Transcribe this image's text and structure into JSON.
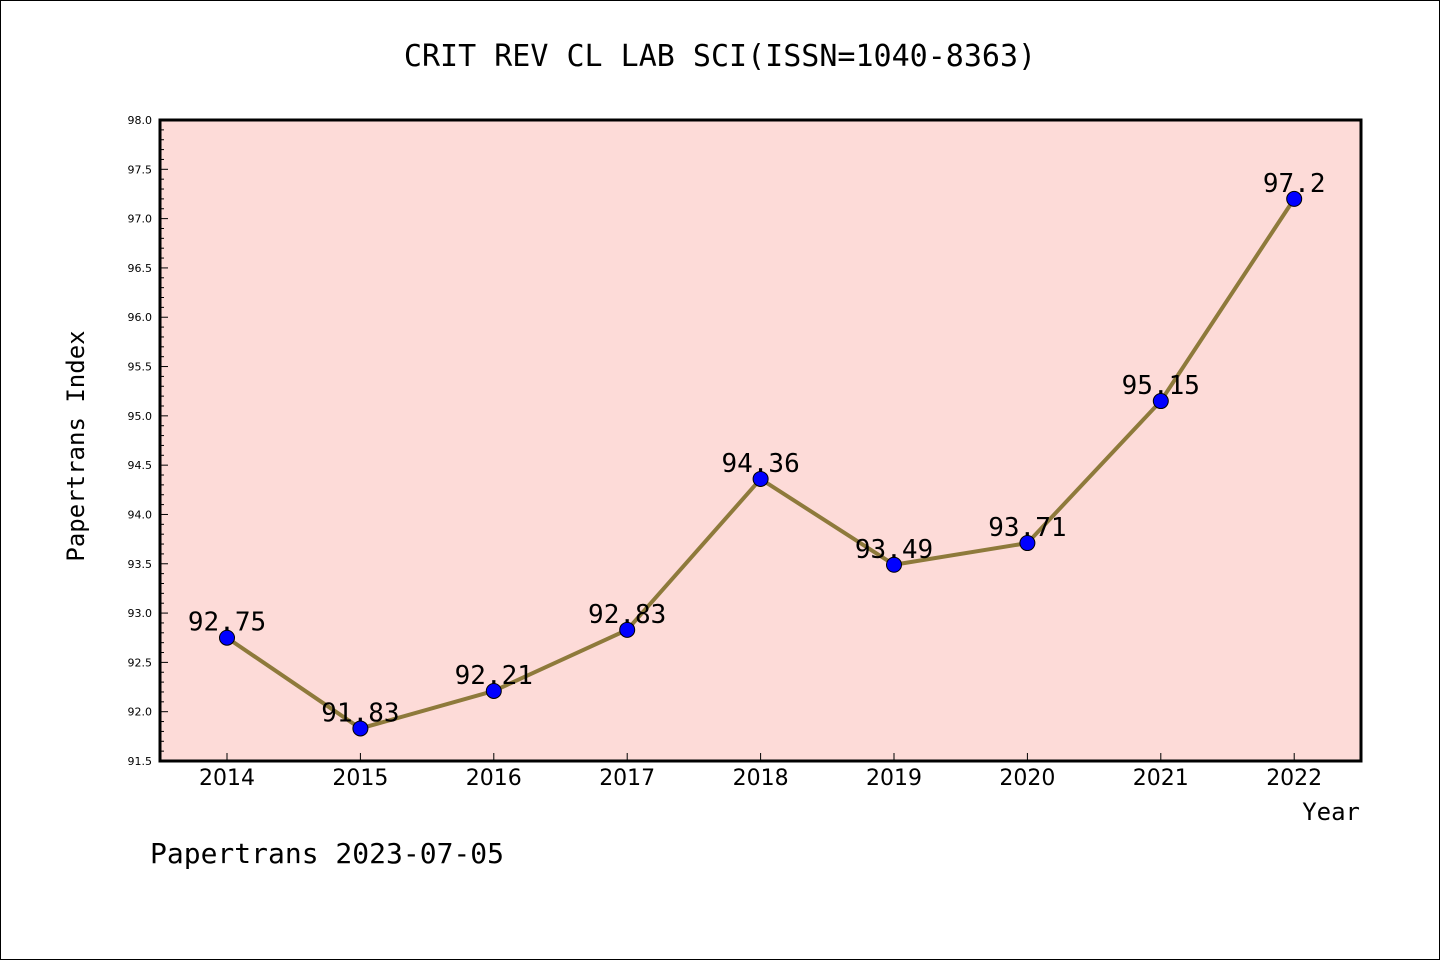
{
  "chart_data": {
    "type": "line",
    "title": "CRIT REV CL LAB SCI(ISSN=1040-8363)",
    "xlabel": "Year",
    "ylabel": "Papertrans Index",
    "categories": [
      "2014",
      "2015",
      "2016",
      "2017",
      "2018",
      "2019",
      "2020",
      "2021",
      "2022"
    ],
    "series": [
      {
        "values": [
          92.75,
          91.83,
          92.21,
          92.83,
          94.36,
          93.49,
          93.71,
          95.15,
          97.2
        ],
        "labels": [
          "92.75",
          "91.83",
          "92.21",
          "92.83",
          "94.36",
          "93.49",
          "93.71",
          "95.15",
          "97.2"
        ]
      }
    ],
    "ylim": [
      91.5,
      98.0
    ],
    "yticks": [
      91.5,
      92.0,
      92.5,
      93.0,
      93.5,
      94.0,
      94.5,
      95.0,
      95.5,
      96.0,
      96.5,
      97.0,
      97.5,
      98.0
    ],
    "ytick_labels": [
      "91.5",
      "92.0",
      "92.5",
      "93.0",
      "93.5",
      "94.0",
      "94.5",
      "95.0",
      "95.5",
      "96.0",
      "96.5",
      "97.0",
      "97.5",
      "98.0"
    ],
    "grid": false,
    "colors": {
      "plot_background": "#fddbd8",
      "line": "#8e7a3b",
      "marker": "#0000ff"
    }
  },
  "footer": "Papertrans 2023-07-05"
}
